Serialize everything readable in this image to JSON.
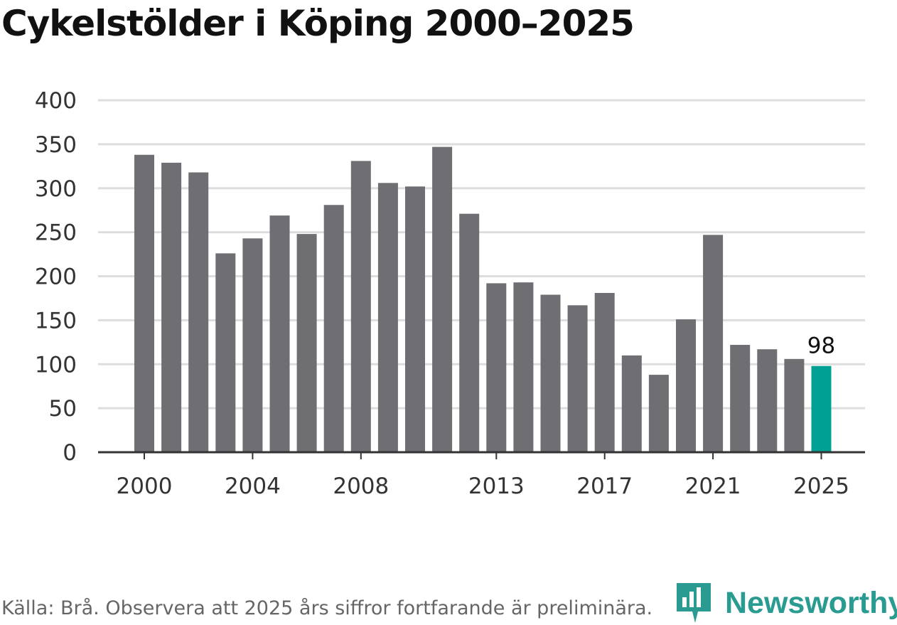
{
  "title": "Cykelstölder i Köping 2000–2025",
  "source": "Källa: Brå. Observera att 2025 års siffror fortfarande är preliminära.",
  "logo": {
    "name": "Newsworthy",
    "icon": "bar-chart-flag-icon"
  },
  "colors": {
    "bar": "#6e6e73",
    "highlight": "#00a095",
    "grid": "#dddddd",
    "axis": "#333333",
    "logo": "#2a9b90"
  },
  "chart_data": {
    "type": "bar",
    "title": "Cykelstölder i Köping 2000–2025",
    "xlabel": "",
    "ylabel": "",
    "categories": [
      2000,
      2001,
      2002,
      2003,
      2004,
      2005,
      2006,
      2007,
      2008,
      2009,
      2010,
      2011,
      2012,
      2013,
      2014,
      2015,
      2016,
      2017,
      2018,
      2019,
      2020,
      2021,
      2022,
      2023,
      2024,
      2025
    ],
    "values": [
      338,
      329,
      318,
      226,
      243,
      269,
      248,
      281,
      331,
      306,
      302,
      347,
      271,
      192,
      193,
      179,
      167,
      181,
      110,
      88,
      151,
      247,
      122,
      117,
      106,
      98
    ],
    "x_tick_labels": [
      "2000",
      "2004",
      "2008",
      "2013",
      "2017",
      "2021",
      "2025"
    ],
    "y_ticks": [
      0,
      50,
      100,
      150,
      200,
      250,
      300,
      350,
      400
    ],
    "ylim": [
      0,
      400
    ],
    "highlight_category": 2025,
    "data_labels": [
      {
        "category": 2025,
        "text": "98"
      }
    ],
    "grid": true
  }
}
